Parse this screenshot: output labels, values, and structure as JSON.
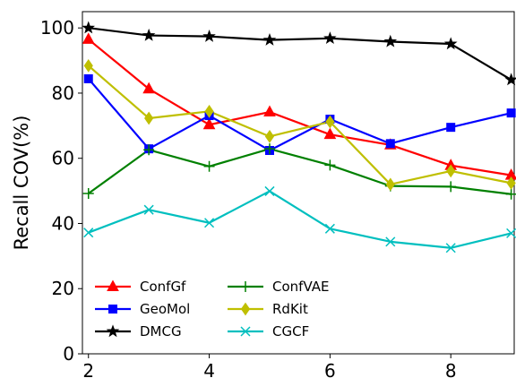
{
  "chart_data": {
    "type": "line",
    "xlabel": "",
    "ylabel": "Recall COV(%)",
    "xlim": [
      1.9,
      9.05
    ],
    "ylim": [
      0,
      105
    ],
    "xticks": [
      2,
      4,
      6,
      8
    ],
    "yticks": [
      0,
      20,
      40,
      60,
      80,
      100
    ],
    "grid": false,
    "legend": {
      "placement": "lower-left",
      "columns": 2
    },
    "x": [
      2,
      3,
      4,
      5,
      6,
      7,
      8,
      9
    ],
    "series": [
      {
        "name": "ConfGf",
        "color": "#ff0000",
        "marker": "triangle",
        "values": [
          96.5,
          81.3,
          70.3,
          74.2,
          67.3,
          64.1,
          57.8,
          54.8
        ]
      },
      {
        "name": "GeoMol",
        "color": "#0000ff",
        "marker": "square",
        "values": [
          84.4,
          62.9,
          73.1,
          62.4,
          72.0,
          64.5,
          69.5,
          73.9
        ]
      },
      {
        "name": "DMCG",
        "color": "#000000",
        "marker": "star",
        "values": [
          100.0,
          97.7,
          97.4,
          96.3,
          96.8,
          95.8,
          95.1,
          84.1
        ]
      },
      {
        "name": "ConfVAE",
        "color": "#008000",
        "marker": "plus",
        "values": [
          49.2,
          62.6,
          57.5,
          62.9,
          57.9,
          51.5,
          51.3,
          49.0
        ]
      },
      {
        "name": "RdKit",
        "color": "#bfbf00",
        "marker": "diamond",
        "values": [
          88.4,
          72.3,
          74.4,
          66.7,
          71.2,
          52.0,
          56.1,
          52.4
        ]
      },
      {
        "name": "CGCF",
        "color": "#00bfbf",
        "marker": "x",
        "values": [
          37.2,
          44.2,
          40.2,
          49.9,
          38.4,
          34.4,
          32.5,
          37.0
        ]
      }
    ]
  }
}
